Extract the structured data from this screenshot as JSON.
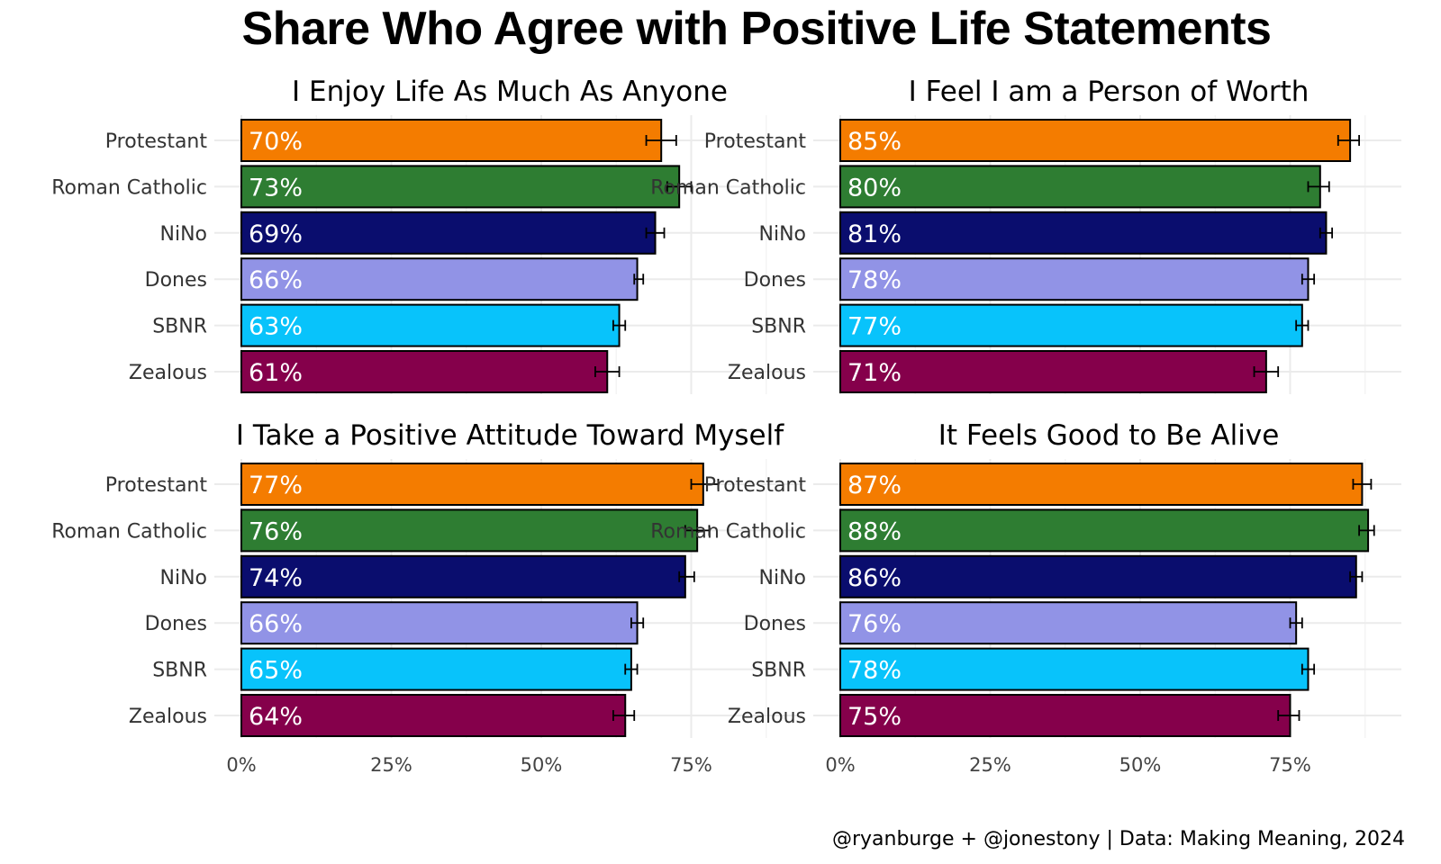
{
  "title": "Share Who Agree with Positive Life Statements",
  "caption": "@ryanburge + @jonestony | Data: Making Meaning, 2024",
  "colors": {
    "Protestant": "#f47c00",
    "Roman Catholic": "#2e7d32",
    "NiNo": "#0a0d6e",
    "Dones": "#9193e6",
    "SBNR": "#08c3fb",
    "Zealous": "#85004b"
  },
  "chart_data": [
    {
      "type": "bar",
      "orientation": "horizontal",
      "title": "I Enjoy Life As Much As Anyone",
      "categories": [
        "Protestant",
        "Roman Catholic",
        "NiNo",
        "Dones",
        "SBNR",
        "Zealous"
      ],
      "values": [
        0.7,
        0.73,
        0.69,
        0.66,
        0.63,
        0.61
      ],
      "labels": [
        "70%",
        "73%",
        "69%",
        "66%",
        "63%",
        "61%"
      ],
      "ci_low": [
        0.675,
        0.71,
        0.675,
        0.655,
        0.62,
        0.59
      ],
      "ci_high": [
        0.725,
        0.75,
        0.705,
        0.67,
        0.64,
        0.63
      ],
      "xlim": [
        0,
        0.93
      ],
      "xticks": [
        0,
        0.25,
        0.5,
        0.75
      ],
      "xtick_labels": [
        "0%",
        "25%",
        "50%",
        "75%"
      ]
    },
    {
      "type": "bar",
      "orientation": "horizontal",
      "title": "I Feel I am a Person of Worth",
      "categories": [
        "Protestant",
        "Roman Catholic",
        "NiNo",
        "Dones",
        "SBNR",
        "Zealous"
      ],
      "values": [
        0.85,
        0.8,
        0.81,
        0.78,
        0.77,
        0.71
      ],
      "labels": [
        "85%",
        "80%",
        "81%",
        "78%",
        "77%",
        "71%"
      ],
      "ci_low": [
        0.83,
        0.78,
        0.8,
        0.77,
        0.76,
        0.69
      ],
      "ci_high": [
        0.865,
        0.815,
        0.82,
        0.79,
        0.78,
        0.73
      ],
      "xlim": [
        0,
        0.93
      ],
      "xticks": [
        0,
        0.25,
        0.5,
        0.75
      ],
      "xtick_labels": [
        "0%",
        "25%",
        "50%",
        "75%"
      ]
    },
    {
      "type": "bar",
      "orientation": "horizontal",
      "title": "I Take a Positive Attitude Toward Myself",
      "categories": [
        "Protestant",
        "Roman Catholic",
        "NiNo",
        "Dones",
        "SBNR",
        "Zealous"
      ],
      "values": [
        0.77,
        0.76,
        0.74,
        0.66,
        0.65,
        0.64
      ],
      "labels": [
        "77%",
        "76%",
        "74%",
        "66%",
        "65%",
        "64%"
      ],
      "ci_low": [
        0.75,
        0.74,
        0.73,
        0.65,
        0.64,
        0.62
      ],
      "ci_high": [
        0.795,
        0.78,
        0.755,
        0.67,
        0.66,
        0.655
      ],
      "xlim": [
        0,
        0.93
      ],
      "xticks": [
        0,
        0.25,
        0.5,
        0.75
      ],
      "xtick_labels": [
        "0%",
        "25%",
        "50%",
        "75%"
      ]
    },
    {
      "type": "bar",
      "orientation": "horizontal",
      "title": "It Feels Good to Be Alive",
      "categories": [
        "Protestant",
        "Roman Catholic",
        "NiNo",
        "Dones",
        "SBNR",
        "Zealous"
      ],
      "values": [
        0.87,
        0.88,
        0.86,
        0.76,
        0.78,
        0.75
      ],
      "labels": [
        "87%",
        "88%",
        "86%",
        "76%",
        "78%",
        "75%"
      ],
      "ci_low": [
        0.855,
        0.865,
        0.85,
        0.75,
        0.77,
        0.73
      ],
      "ci_high": [
        0.885,
        0.89,
        0.87,
        0.77,
        0.79,
        0.765
      ],
      "xlim": [
        0,
        0.93
      ],
      "xticks": [
        0,
        0.25,
        0.5,
        0.75
      ],
      "xtick_labels": [
        "0%",
        "25%",
        "50%",
        "75%"
      ]
    }
  ]
}
